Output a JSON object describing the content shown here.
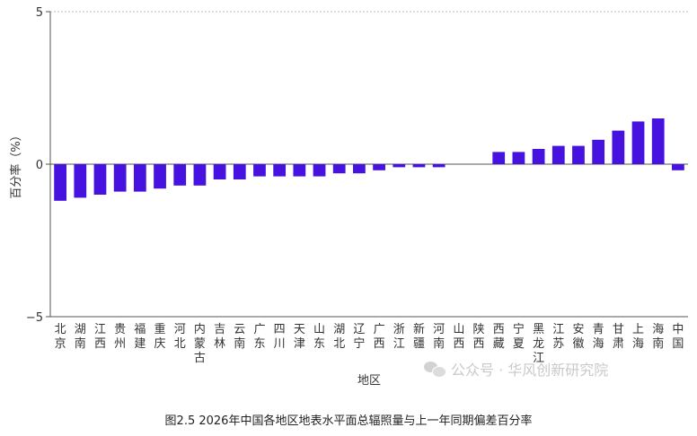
{
  "figure": {
    "caption": "图2.5 2026年中国各地区地表水平面总辐照量与上一年同期偏差百分率",
    "watermark": "公众号 · 华风创新研究院",
    "colors": {
      "bar": "#4512e0",
      "axis": "#555555",
      "grid": "#bbbbbb"
    }
  },
  "chart_data": {
    "type": "bar",
    "xlabel": "地区",
    "ylabel": "百分率（%）",
    "ylim": [
      -5,
      5
    ],
    "yticks": [
      5,
      0,
      -5
    ],
    "grid": "top dashed line only",
    "categories": [
      "北京",
      "湖南",
      "江西",
      "贵州",
      "福建",
      "重庆",
      "河北",
      "内蒙古",
      "吉林",
      "云南",
      "广东",
      "四川",
      "天津",
      "山东",
      "湖北",
      "辽宁",
      "广西",
      "浙江",
      "新疆",
      "河南",
      "山西",
      "陕西",
      "西藏",
      "宁夏",
      "黑龙江",
      "江苏",
      "安徽",
      "青海",
      "甘肃",
      "上海",
      "海南",
      "中国"
    ],
    "values": [
      -1.2,
      -1.1,
      -1.0,
      -0.9,
      -0.9,
      -0.8,
      -0.7,
      -0.7,
      -0.5,
      -0.5,
      -0.4,
      -0.4,
      -0.4,
      -0.4,
      -0.3,
      -0.3,
      -0.2,
      -0.1,
      -0.1,
      -0.1,
      0,
      0,
      0.4,
      0.4,
      0.5,
      0.6,
      0.6,
      0.8,
      1.1,
      1.4,
      1.5,
      -0.2
    ]
  }
}
